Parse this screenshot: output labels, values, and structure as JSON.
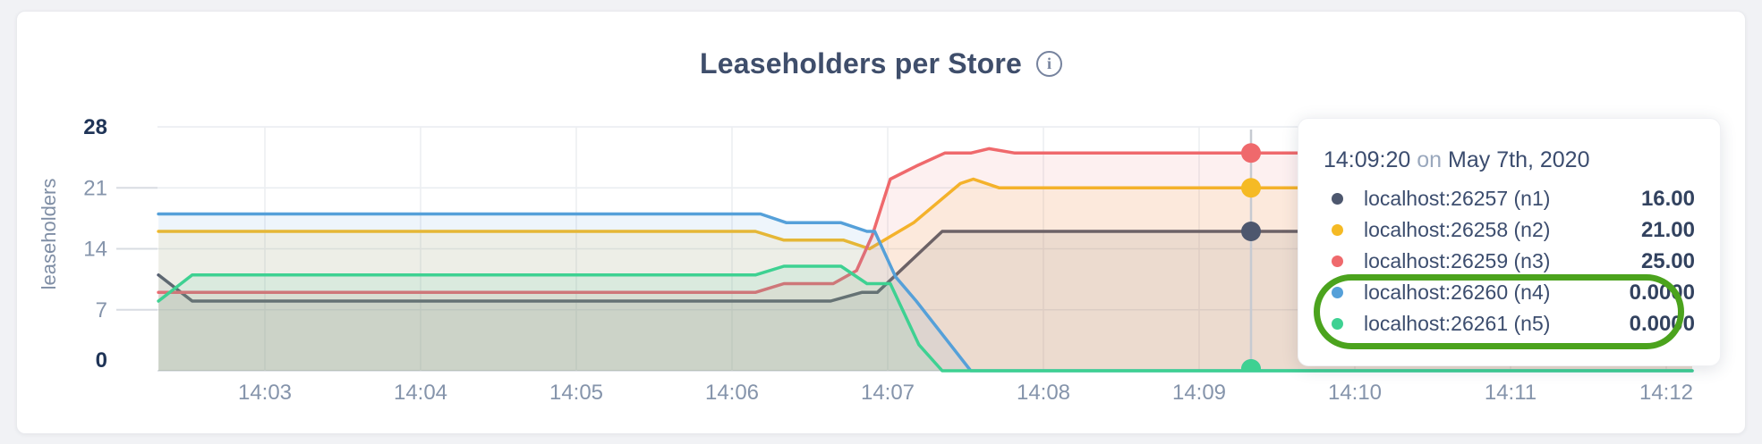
{
  "header": {
    "title": "Leaseholders per Store",
    "info_icon_glyph": "i"
  },
  "tooltip": {
    "time": "14:09:20",
    "connector": "on",
    "date": "May 7th, 2020",
    "rows": [
      {
        "label": "localhost:26257 (n1)",
        "value": "16.00",
        "color": "#4d576e",
        "highlighted": false
      },
      {
        "label": "localhost:26258 (n2)",
        "value": "21.00",
        "color": "#f5ba24",
        "highlighted": false
      },
      {
        "label": "localhost:26259 (n3)",
        "value": "25.00",
        "color": "#ef696c",
        "highlighted": false
      },
      {
        "label": "localhost:26260 (n4)",
        "value": "0.0000",
        "color": "#55a0d9",
        "highlighted": true
      },
      {
        "label": "localhost:26261 (n5)",
        "value": "0.0000",
        "color": "#3ed192",
        "highlighted": true
      }
    ],
    "highlight_ring_color": "#4ba31d"
  },
  "chart_data": {
    "type": "area",
    "title": "Leaseholders per Store",
    "xlabel": "",
    "ylabel": "leaseholders",
    "ylim": [
      0,
      28
    ],
    "y_ticks": [
      0,
      7,
      14,
      21,
      28
    ],
    "y_ticks_bold": [
      0,
      28
    ],
    "grid": true,
    "x_unit": "seconds after 14:00 on May 7th, 2020",
    "x_domain_sec": [
      139,
      730
    ],
    "x_ticks": [
      {
        "label": "14:03",
        "sec": 180
      },
      {
        "label": "14:04",
        "sec": 240
      },
      {
        "label": "14:05",
        "sec": 300
      },
      {
        "label": "14:06",
        "sec": 360
      },
      {
        "label": "14:07",
        "sec": 420
      },
      {
        "label": "14:08",
        "sec": 480
      },
      {
        "label": "14:09",
        "sec": 540
      },
      {
        "label": "14:10",
        "sec": 600
      },
      {
        "label": "14:11",
        "sec": 660
      },
      {
        "label": "14:12",
        "sec": 720
      }
    ],
    "hover": {
      "sec": 560,
      "time": "14:09:20"
    },
    "series": [
      {
        "name": "localhost:26257 (n1)",
        "color": "#4d576e",
        "hover_value": 16,
        "points": [
          [
            139,
            11
          ],
          [
            152,
            8
          ],
          [
            398,
            8
          ],
          [
            410,
            9
          ],
          [
            416,
            9
          ],
          [
            441,
            16
          ],
          [
            730,
            16
          ]
        ]
      },
      {
        "name": "localhost:26258 (n2)",
        "color": "#f5ba24",
        "hover_value": 21,
        "points": [
          [
            139,
            16
          ],
          [
            369,
            16
          ],
          [
            380,
            15
          ],
          [
            403,
            15
          ],
          [
            413,
            14
          ],
          [
            430,
            17
          ],
          [
            448,
            21.5
          ],
          [
            453,
            22
          ],
          [
            463,
            21
          ],
          [
            730,
            21
          ]
        ]
      },
      {
        "name": "localhost:26259 (n3)",
        "color": "#ef696c",
        "hover_value": 25,
        "points": [
          [
            139,
            9
          ],
          [
            369,
            9
          ],
          [
            380,
            10
          ],
          [
            399,
            10
          ],
          [
            408,
            11.5
          ],
          [
            414,
            15.5
          ],
          [
            421,
            22
          ],
          [
            431,
            23.5
          ],
          [
            442,
            25
          ],
          [
            452,
            25
          ],
          [
            459,
            25.5
          ],
          [
            469,
            25
          ],
          [
            730,
            25
          ]
        ]
      },
      {
        "name": "localhost:26260 (n4)",
        "color": "#55a0d9",
        "hover_value": 0,
        "points": [
          [
            139,
            18
          ],
          [
            371,
            18
          ],
          [
            381,
            17
          ],
          [
            402,
            17
          ],
          [
            412,
            16
          ],
          [
            415,
            16
          ],
          [
            423,
            10.8
          ],
          [
            431,
            8
          ],
          [
            452,
            0
          ],
          [
            730,
            0
          ]
        ]
      },
      {
        "name": "localhost:26261 (n5)",
        "color": "#3ed192",
        "hover_value": 0,
        "points": [
          [
            139,
            8
          ],
          [
            152,
            11
          ],
          [
            369,
            11
          ],
          [
            380,
            12
          ],
          [
            402,
            12
          ],
          [
            412,
            10
          ],
          [
            421,
            10
          ],
          [
            432,
            3
          ],
          [
            441,
            0
          ],
          [
            730,
            0
          ]
        ]
      }
    ]
  }
}
